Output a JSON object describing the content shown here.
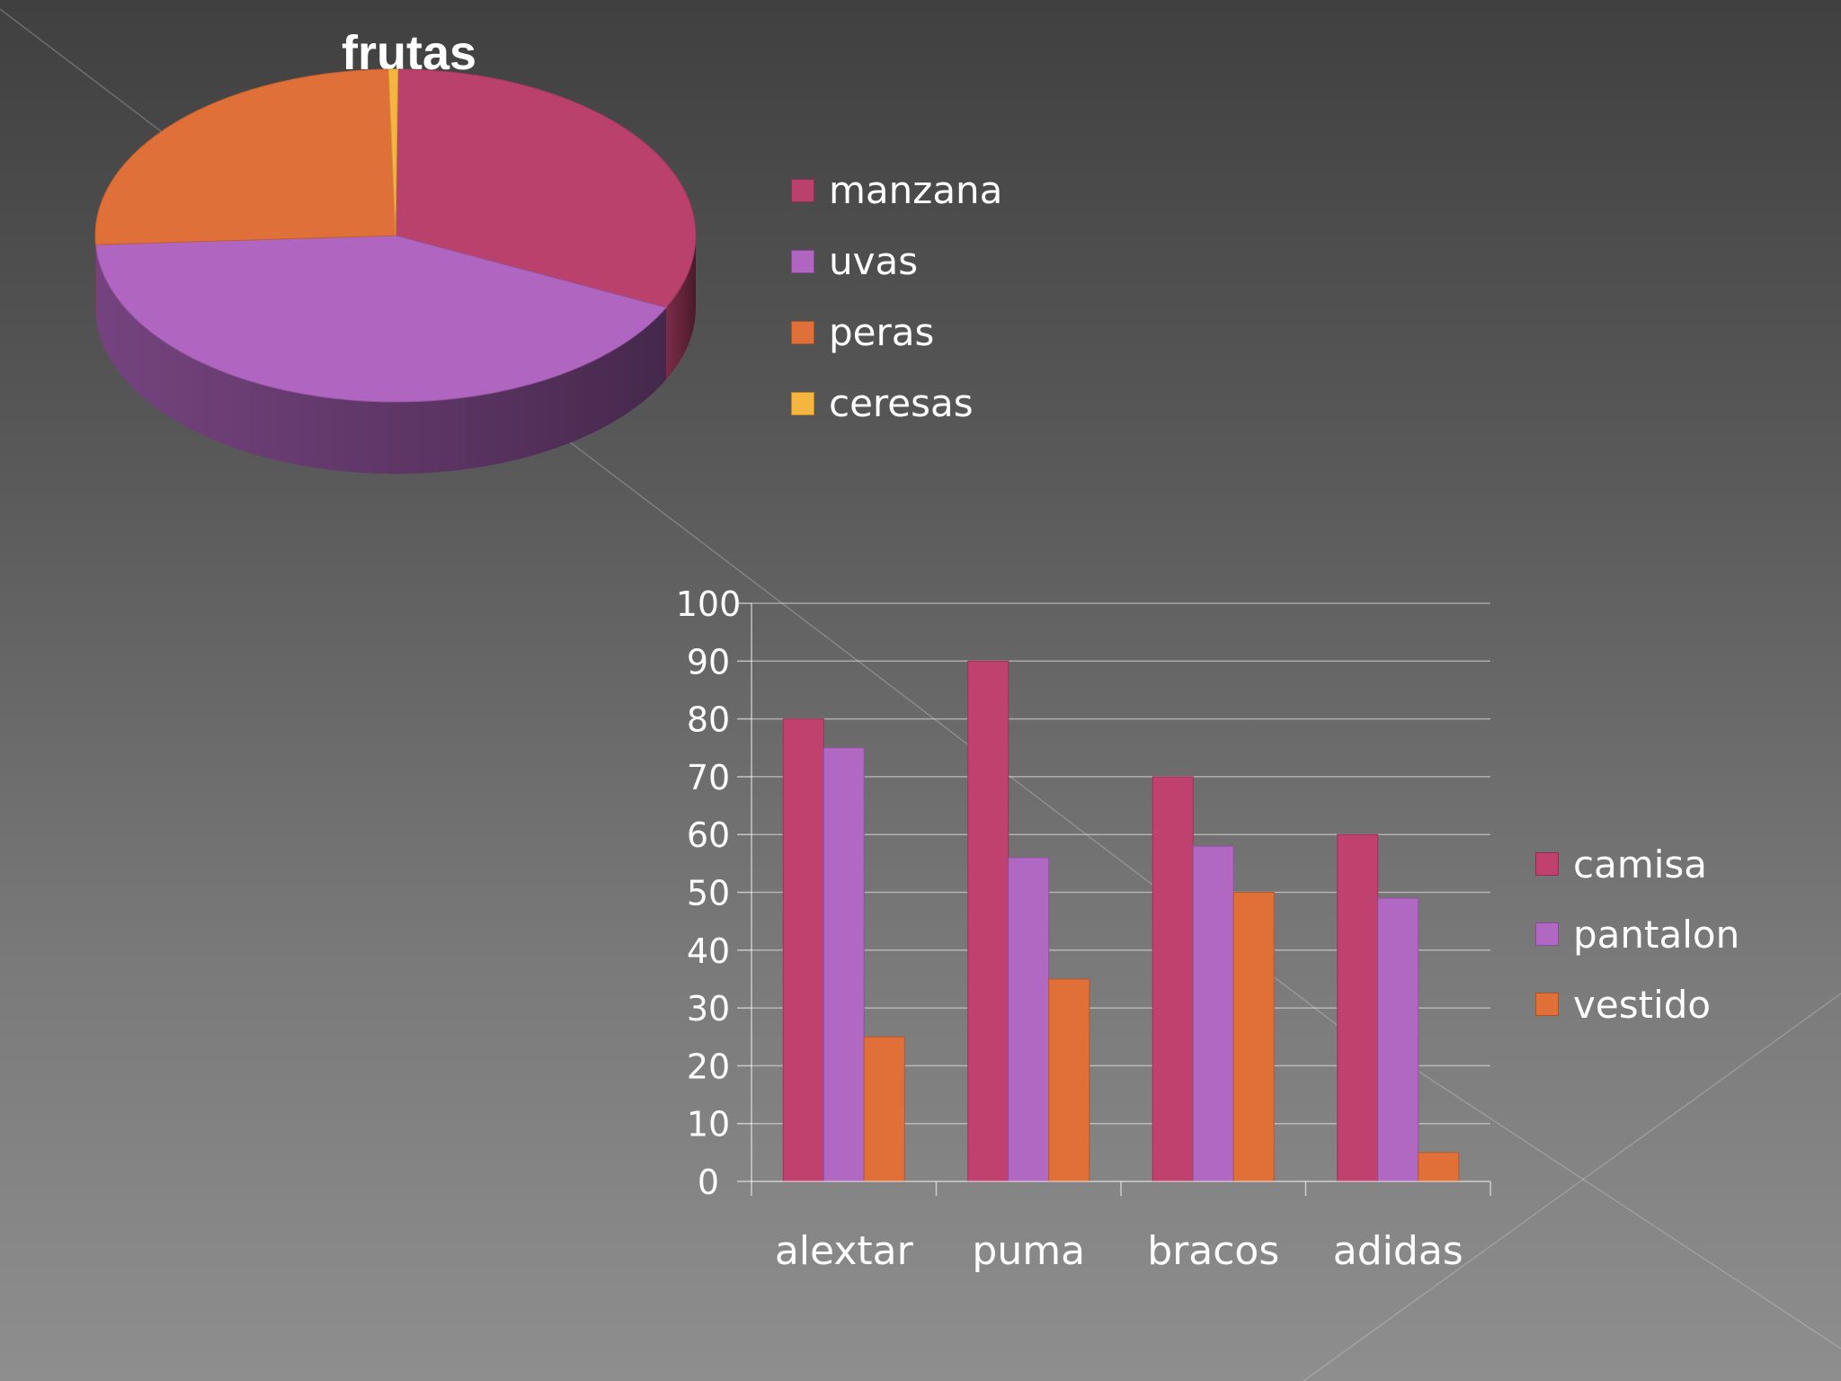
{
  "chart_data": [
    {
      "type": "pie",
      "title": "frutas",
      "categories": [
        "manzana",
        "uvas",
        "peras",
        "ceresas"
      ],
      "values": [
        32,
        42,
        25.5,
        0.5
      ],
      "legend_position": "right",
      "three_d": true
    },
    {
      "type": "bar",
      "title": "",
      "categories": [
        "alextar",
        "puma",
        "bracos",
        "adidas"
      ],
      "series": [
        {
          "name": "camisa",
          "values": [
            80,
            90,
            70,
            60
          ]
        },
        {
          "name": "pantalon",
          "values": [
            75,
            56,
            58,
            49
          ]
        },
        {
          "name": "vestido",
          "values": [
            25,
            35,
            50,
            5
          ]
        }
      ],
      "yticks": [
        "0",
        "10",
        "20",
        "30",
        "40",
        "50",
        "60",
        "70",
        "80",
        "90",
        "100"
      ],
      "ylim": [
        0,
        100
      ],
      "grid": true,
      "legend_position": "right"
    }
  ],
  "colors": {
    "manzana": "#b9416b",
    "uvas": "#b066c0",
    "peras": "#e0703a",
    "ceresas": "#f5b53f",
    "camisa": "#c0416d",
    "pantalon": "#b068c2",
    "vestido": "#e07038"
  }
}
